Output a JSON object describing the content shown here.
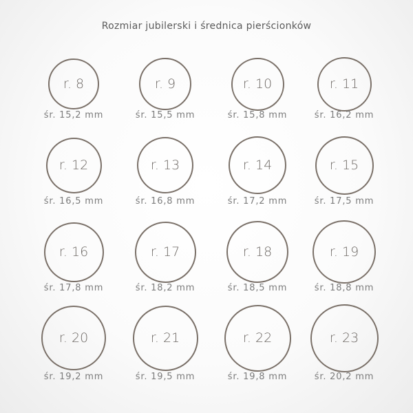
{
  "title": "Rozmiar jubilerski i średnica pierścionków",
  "colors": {
    "ring_stroke": "#7a7068",
    "text": "#777777"
  },
  "rings": [
    {
      "size": "r. 8",
      "diameter": "śr. 15,2 mm",
      "mm": 15.2
    },
    {
      "size": "r. 9",
      "diameter": "śr. 15,5 mm",
      "mm": 15.5
    },
    {
      "size": "r. 10",
      "diameter": "śr. 15,8 mm",
      "mm": 15.8
    },
    {
      "size": "r. 11",
      "diameter": "śr. 16,2 mm",
      "mm": 16.2
    },
    {
      "size": "r. 12",
      "diameter": "śr. 16,5 mm",
      "mm": 16.5
    },
    {
      "size": "r. 13",
      "diameter": "śr. 16,8 mm",
      "mm": 16.8
    },
    {
      "size": "r. 14",
      "diameter": "śr. 17,2 mm",
      "mm": 17.2
    },
    {
      "size": "r. 15",
      "diameter": "śr. 17,5 mm",
      "mm": 17.5
    },
    {
      "size": "r. 16",
      "diameter": "śr. 17,8 mm",
      "mm": 17.8
    },
    {
      "size": "r. 17",
      "diameter": "śr. 18,2 mm",
      "mm": 18.2
    },
    {
      "size": "r. 18",
      "diameter": "śr. 18,5 mm",
      "mm": 18.5
    },
    {
      "size": "r. 19",
      "diameter": "śr. 18,8 mm",
      "mm": 18.8
    },
    {
      "size": "r. 20",
      "diameter": "śr. 19,2 mm",
      "mm": 19.2
    },
    {
      "size": "r. 21",
      "diameter": "śr. 19,5 mm",
      "mm": 19.5
    },
    {
      "size": "r. 22",
      "diameter": "śr. 19,8 mm",
      "mm": 19.8
    },
    {
      "size": "r. 23",
      "diameter": "śr. 20,2 mm",
      "mm": 20.2
    }
  ]
}
